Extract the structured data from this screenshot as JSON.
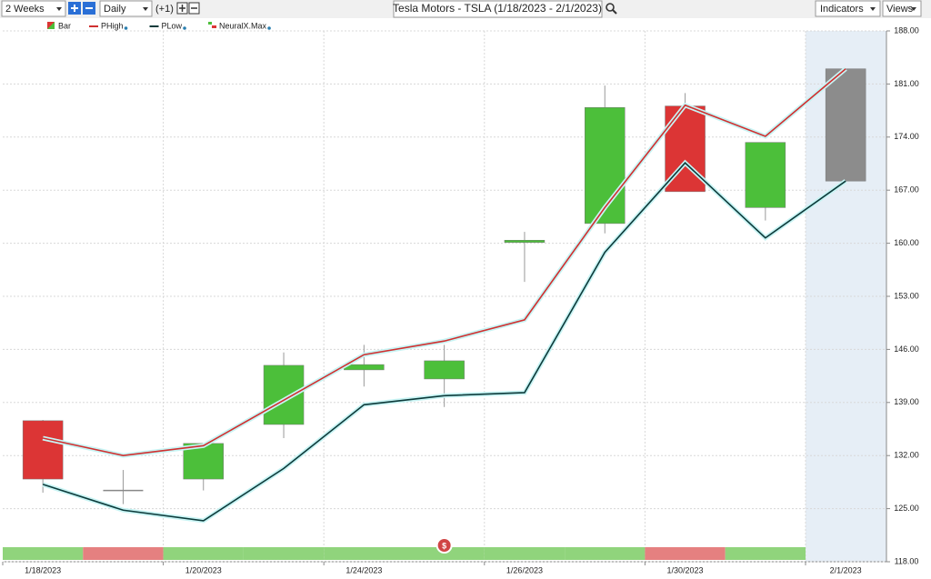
{
  "toolbar": {
    "period": "2 Weeks",
    "interval": "Daily",
    "offset": "(+1)",
    "title": "Tesla Motors - TSLA (1/18/2023 - 2/1/2023)",
    "indicators": "Indicators",
    "views": "Views"
  },
  "chart_data": {
    "type": "candlestick",
    "categories": [
      "1/18/2023",
      null,
      "1/20/2023",
      null,
      "1/24/2023",
      null,
      "1/26/2023",
      null,
      "1/30/2023",
      null,
      "2/1/2023"
    ],
    "candle_name": "Bar",
    "open": [
      136.6,
      127.4,
      128.9,
      136.1,
      143.3,
      142.1,
      160.1,
      162.6,
      178.1,
      164.7,
      183.0
    ],
    "high": [
      136.7,
      130.1,
      133.6,
      145.6,
      146.6,
      146.6,
      161.5,
      180.8,
      179.8,
      173.3,
      183.0
    ],
    "low": [
      127.1,
      125.6,
      127.4,
      134.3,
      141.1,
      138.4,
      154.9,
      161.3,
      166.8,
      163.0,
      168.2
    ],
    "close": [
      128.9,
      127.4,
      133.6,
      143.9,
      144.0,
      144.5,
      160.4,
      177.9,
      166.8,
      173.3,
      168.2
    ],
    "candle_colors": [
      "#dc3535",
      "#888888",
      "#4cbf3a",
      "#4cbf3a",
      "#4cbf3a",
      "#4cbf3a",
      "#4cbf3a",
      "#4cbf3a",
      "#dc3535",
      "#4cbf3a",
      "#8c8c8c"
    ],
    "series": [
      {
        "name": "PHigh",
        "color": "#d03030",
        "values": [
          134.3,
          132.0,
          133.3,
          139.3,
          145.3,
          147.1,
          149.9,
          164.7,
          178.2,
          174.1,
          183.0
        ]
      },
      {
        "name": "PLow",
        "color": "#0d3b3b",
        "values": [
          128.2,
          124.8,
          123.4,
          130.3,
          138.7,
          139.9,
          140.3,
          158.8,
          170.6,
          160.7,
          168.2
        ]
      }
    ],
    "strip": {
      "name": "NeuralX.Max",
      "colors": [
        "#90d47c",
        "#e58080",
        "#90d47c",
        "#90d47c",
        "#90d47c",
        "#90d47c",
        "#90d47c",
        "#90d47c",
        "#e58080",
        "#90d47c",
        null
      ]
    },
    "annotation": "$",
    "ylim": [
      118,
      188
    ],
    "yticks": [
      {
        "value": 118,
        "label": "118.00"
      },
      {
        "value": 125,
        "label": "125.00"
      },
      {
        "value": 132,
        "label": "132.00"
      },
      {
        "value": 139,
        "label": "139.00"
      },
      {
        "value": 146,
        "label": "146.00"
      },
      {
        "value": 153,
        "label": "153.00"
      },
      {
        "value": 160,
        "label": "160.00"
      },
      {
        "value": 167,
        "label": "167.00"
      },
      {
        "value": 174,
        "label": "174.00"
      },
      {
        "value": 181,
        "label": "181.00"
      },
      {
        "value": 188,
        "label": "188.00"
      }
    ],
    "grid": true
  }
}
